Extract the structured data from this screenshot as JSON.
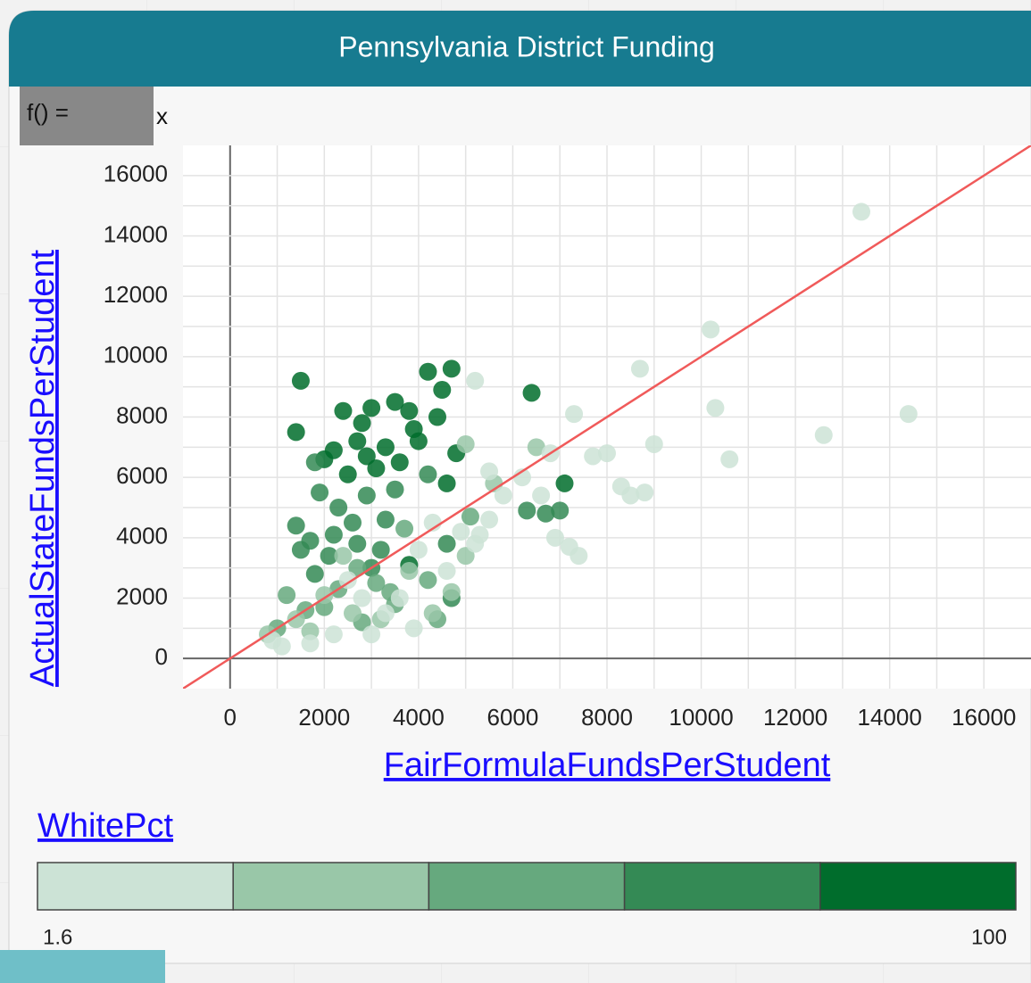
{
  "window_title": "Pennsylvania District Funding",
  "formula_prefix": "f() =",
  "formula": "x",
  "chart_data": {
    "type": "scatter",
    "xlabel": "FairFormulaFundsPerStudent",
    "ylabel": "ActualStateFundsPerStudent",
    "xlim": [
      -1000,
      17000
    ],
    "ylim": [
      -1000,
      17000
    ],
    "xticks": [
      0,
      2000,
      4000,
      6000,
      8000,
      10000,
      12000,
      14000,
      16000
    ],
    "yticks": [
      0,
      2000,
      4000,
      6000,
      8000,
      10000,
      12000,
      14000,
      16000
    ],
    "xgrid": [
      0,
      1000,
      2000,
      3000,
      4000,
      5000,
      6000,
      7000,
      8000,
      9000,
      10000,
      11000,
      12000,
      13000,
      14000,
      15000,
      16000
    ],
    "ygrid": [
      0,
      1000,
      2000,
      3000,
      4000,
      5000,
      6000,
      7000,
      8000,
      9000,
      10000,
      11000,
      12000,
      13000,
      14000,
      15000,
      16000
    ],
    "line_color": "#f05a5a",
    "color_by": "WhitePct",
    "color_range": [
      1.6,
      100
    ],
    "color_scale": [
      "#cce3d6",
      "#99c7a8",
      "#66a97e",
      "#348a55",
      "#006d2c"
    ],
    "x": [
      1500,
      1400,
      2400,
      2800,
      3000,
      3500,
      3800,
      4200,
      4700,
      4500,
      6400,
      2200,
      2700,
      3300,
      3600,
      4000,
      4800,
      2500,
      3100,
      4400,
      3900,
      2000,
      7100,
      3800,
      2900,
      4600,
      1800,
      1400,
      1900,
      2300,
      2600,
      1700,
      2100,
      2900,
      3300,
      3500,
      4200,
      6700,
      7000,
      1500,
      2700,
      4600,
      4700,
      3200,
      2200,
      6300,
      1800,
      3000,
      1200,
      1600,
      2300,
      2700,
      3400,
      3700,
      4200,
      4400,
      1000,
      2000,
      2800,
      3100,
      5100,
      3500,
      800,
      1400,
      2000,
      2600,
      3200,
      4300,
      4700,
      5000,
      1700,
      2400,
      5000,
      3800,
      6500,
      5600,
      13400,
      10200,
      8700,
      10300,
      7300,
      9000,
      10600,
      12600,
      14400,
      8000,
      7700,
      8300,
      8800,
      8500,
      6600,
      7400,
      6900,
      7200,
      5200,
      5500,
      5800,
      6800,
      4900,
      5500,
      4300,
      4000,
      5200,
      3600,
      3000,
      2200,
      1700,
      1100,
      3900,
      4600,
      6200,
      5300,
      2500,
      3300,
      900,
      2800
    ],
    "values": [
      9200,
      7500,
      8200,
      7800,
      8300,
      8500,
      8200,
      9500,
      9600,
      8900,
      8800,
      6900,
      7200,
      7000,
      6500,
      7200,
      6800,
      6100,
      6300,
      8000,
      7600,
      6600,
      5800,
      3100,
      6700,
      5800,
      6500,
      4400,
      5500,
      5000,
      4500,
      3900,
      3400,
      5400,
      4600,
      5600,
      6100,
      4800,
      4900,
      3600,
      3800,
      3800,
      2000,
      3600,
      4100,
      4900,
      2800,
      3000,
      2100,
      1600,
      2300,
      3000,
      2200,
      4300,
      2600,
      1300,
      1000,
      1700,
      1200,
      2500,
      4700,
      1800,
      800,
      1300,
      2100,
      1500,
      1300,
      1500,
      2200,
      3400,
      900,
      3400,
      7100,
      2900,
      7000,
      5800,
      14800,
      10900,
      9600,
      8300,
      8100,
      7100,
      6600,
      7400,
      8100,
      6800,
      6700,
      5700,
      5500,
      5400,
      5400,
      3400,
      4000,
      3700,
      9200,
      6200,
      5400,
      6800,
      4200,
      4600,
      4500,
      3600,
      3800,
      2000,
      800,
      800,
      500,
      400,
      1000,
      2900,
      6000,
      4100,
      2600,
      1500,
      600,
      2000
    ],
    "color_values": [
      92,
      90,
      88,
      91,
      94,
      95,
      89,
      96,
      93,
      90,
      97,
      88,
      85,
      87,
      89,
      92,
      86,
      84,
      88,
      91,
      90,
      86,
      95,
      93,
      89,
      87,
      72,
      70,
      68,
      74,
      71,
      69,
      66,
      73,
      70,
      75,
      72,
      71,
      68,
      67,
      70,
      73,
      72,
      69,
      66,
      74,
      68,
      71,
      52,
      48,
      50,
      55,
      47,
      53,
      51,
      49,
      46,
      50,
      54,
      52,
      48,
      55,
      30,
      32,
      28,
      35,
      31,
      29,
      33,
      27,
      34,
      30,
      26,
      32,
      28,
      31,
      8,
      10,
      6,
      12,
      9,
      11,
      7,
      10,
      5,
      13,
      9,
      11,
      8,
      12,
      10,
      7,
      9,
      11,
      14,
      12,
      10,
      8,
      13,
      11,
      9,
      15,
      12,
      10,
      14,
      16,
      11,
      13,
      9,
      12,
      10,
      14,
      15,
      13,
      16,
      12
    ]
  }
}
